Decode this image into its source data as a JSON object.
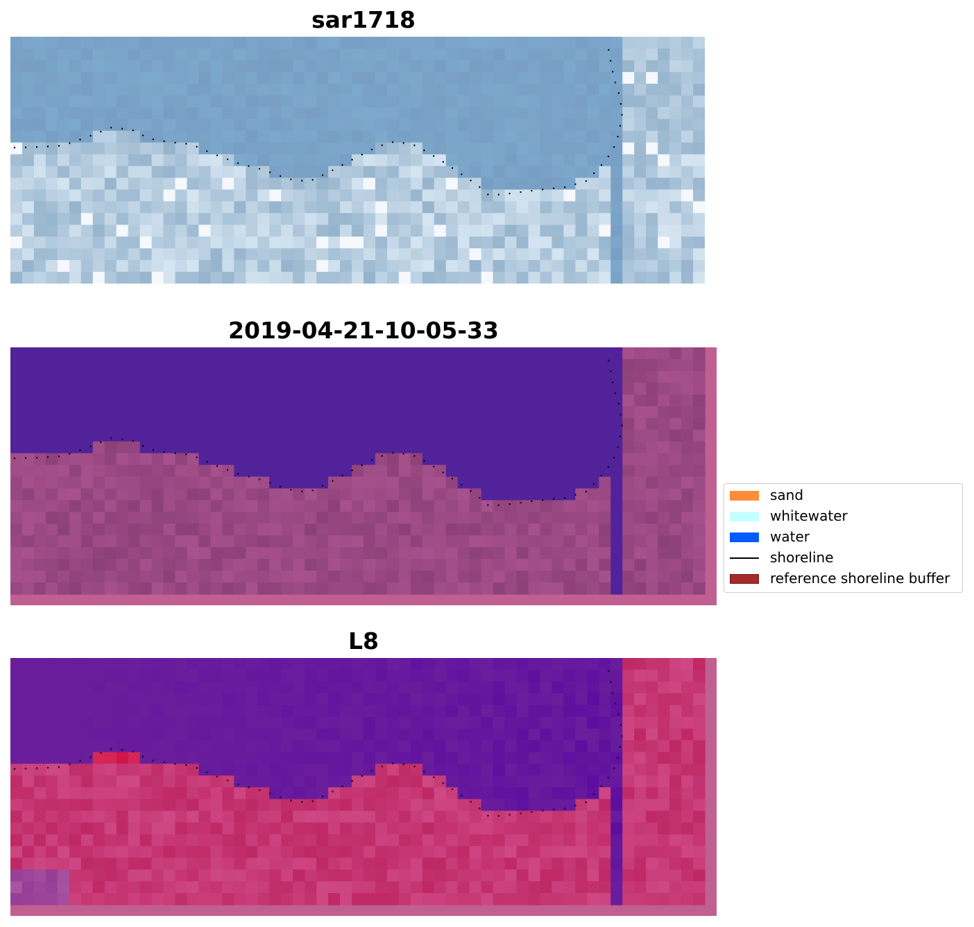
{
  "panels": [
    {
      "title": "sar1718",
      "theme": "rgb"
    },
    {
      "title": "2019-04-21-10-05-33",
      "theme": "classified"
    },
    {
      "title": "L8",
      "theme": "index"
    }
  ],
  "legend": {
    "items": [
      {
        "label": "sand",
        "color": "#ff8c3a",
        "kind": "patch"
      },
      {
        "label": "whitewater",
        "color": "#c6ffff",
        "kind": "patch"
      },
      {
        "label": "water",
        "color": "#005cff",
        "kind": "patch"
      },
      {
        "label": "shoreline",
        "color": "#000000",
        "kind": "line"
      },
      {
        "label": "reference shoreline buffer",
        "color": "#a52a2a",
        "kind": "patch"
      }
    ]
  },
  "colors": {
    "water_rgb": "#7fa8c8",
    "water_classified": "#52229a",
    "land_classified": "#8f467e",
    "pad_pink": "#c06090",
    "water_index": "#6a1e9c",
    "land_index": "#c83b6e"
  }
}
